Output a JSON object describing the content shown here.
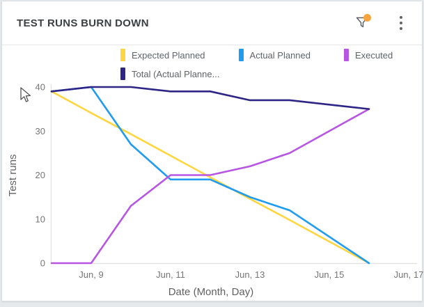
{
  "header": {
    "title": "TEST RUNS BURN DOWN",
    "filter_icon": "funnel-icon",
    "menu_icon": "kebab-menu-icon"
  },
  "colors": {
    "title_text": "#3c4043",
    "secondary_text": "#5f6368",
    "tick_text": "#757575",
    "axis_line": "#e0e0e0",
    "filter_badge": "#f9a43f",
    "icon_gray": "#5f6368",
    "card_background": "#ffffff",
    "page_background": "#e6e9eb"
  },
  "chart_data": {
    "type": "line",
    "title": "TEST RUNS BURN DOWN",
    "x": [
      "Jun 8",
      "Jun 9",
      "Jun 10",
      "Jun 11",
      "Jun 12",
      "Jun 13",
      "Jun 14",
      "Jun 15",
      "Jun 16"
    ],
    "x_tick_labels": [
      "Jun, 9",
      "Jun, 11",
      "Jun, 13",
      "Jun, 15",
      "Jun, 17"
    ],
    "x_axis_range": [
      "Jun 8",
      "Jun 17"
    ],
    "xlabel": "Date (Month, Day)",
    "ylabel": "Test runs",
    "ylim": [
      0,
      40
    ],
    "y_ticks": [
      0,
      10,
      20,
      30,
      40
    ],
    "grid": false,
    "legend_position": "top",
    "series": [
      {
        "name": "Expected Planned",
        "color": "#ffd640",
        "values": [
          39,
          34.1,
          29.3,
          24.4,
          19.5,
          14.6,
          9.8,
          4.9,
          0
        ]
      },
      {
        "name": "Actual Planned",
        "color": "#1f9bf0",
        "values": [
          39,
          40,
          27,
          19,
          19,
          15,
          12,
          6,
          0
        ]
      },
      {
        "name": "Executed",
        "color": "#b756e2",
        "values": [
          0,
          0,
          13,
          20,
          20,
          22,
          25,
          30,
          35
        ]
      },
      {
        "name": "Total (Actual Planne...",
        "color": "#2e2585",
        "values": [
          39,
          40,
          40,
          39,
          39,
          37,
          37,
          36,
          35
        ]
      }
    ]
  }
}
